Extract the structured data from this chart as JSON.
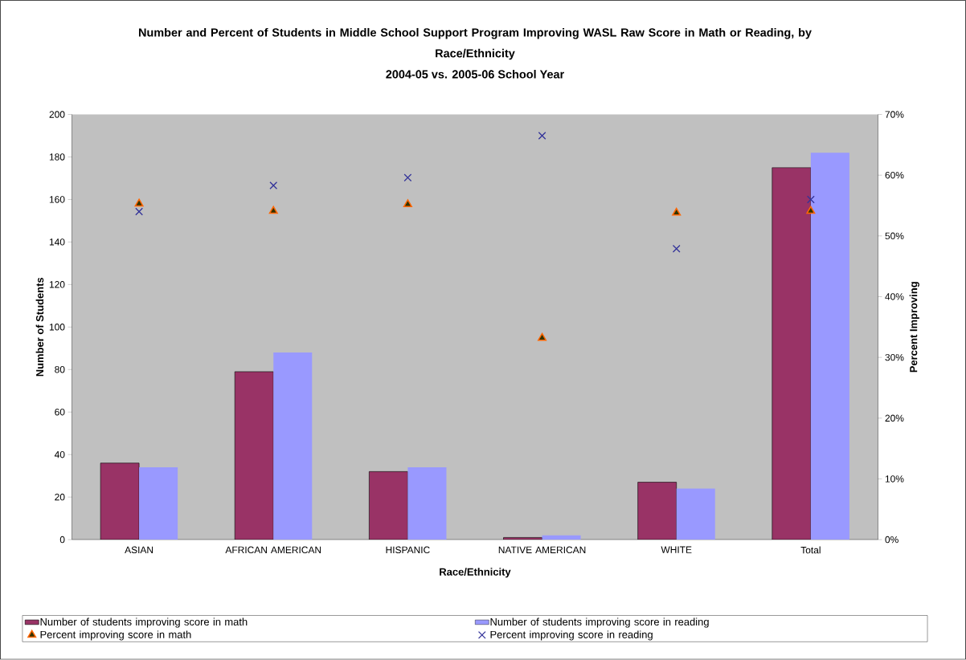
{
  "chart_data": {
    "type": "bar",
    "title": "Number and Percent of Students in Middle School Support Program Improving WASL Raw Score in Math or Reading, by Race/Ethnicity",
    "subtitle": "2004-05 vs. 2005-06 School Year",
    "xlabel": "Race/Ethnicity",
    "ylabel": "Number of Students",
    "y2label": "Percent Improving",
    "categories": [
      "ASIAN",
      "AFRICAN AMERICAN",
      "HISPANIC",
      "NATIVE AMERICAN",
      "WHITE",
      "Total"
    ],
    "series": [
      {
        "name": "Number of students improving score in math",
        "color": "#993366",
        "values": [
          36,
          79,
          32,
          1,
          27,
          175
        ]
      },
      {
        "name": "Number of students improving score in reading",
        "color": "#9999ff",
        "values": [
          34,
          88,
          34,
          2,
          24,
          182
        ]
      },
      {
        "name": "Percent improving score in math",
        "type": "scatter",
        "axis": "y2",
        "marker": "triangle",
        "color": "#ff6600",
        "values": [
          55.3,
          54.1,
          55.2,
          33.2,
          53.8,
          54.1
        ]
      },
      {
        "name": "Percent improving score in reading",
        "type": "scatter",
        "axis": "y2",
        "marker": "cross",
        "color": "#333399",
        "values": [
          54.0,
          58.3,
          59.6,
          66.5,
          47.9,
          56.0
        ]
      }
    ],
    "ylim": [
      0,
      200
    ],
    "yticks": [
      0,
      20,
      40,
      60,
      80,
      100,
      120,
      140,
      160,
      180,
      200
    ],
    "y2lim": [
      0,
      70
    ],
    "y2ticks": [
      {
        "value": 0,
        "label": "0%"
      },
      {
        "value": 10,
        "label": "10%"
      },
      {
        "value": 20,
        "label": "20%"
      },
      {
        "value": 30,
        "label": "30%"
      },
      {
        "value": 40,
        "label": "40%"
      },
      {
        "value": 50,
        "label": "50%"
      },
      {
        "value": 60,
        "label": "60%"
      },
      {
        "value": 70,
        "label": "70%"
      }
    ],
    "grid": false,
    "legend": "bottom"
  }
}
